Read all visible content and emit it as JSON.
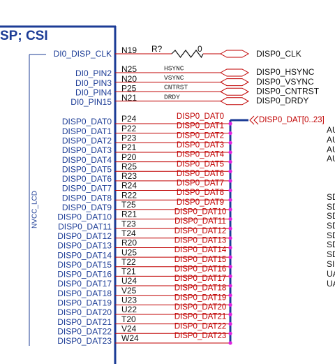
{
  "header": {
    "title": "SP; CSI"
  },
  "power_label": "NVCC_LCD",
  "clock": {
    "signal": "DI0_DISP_CLK",
    "pin": "N19",
    "resistor_ref": "R?",
    "resistor_value": "0",
    "port": "DISP0_CLK"
  },
  "control_pins": [
    {
      "signal": "DI0_PIN2",
      "pin": "N25",
      "net": "HSYNC",
      "port": "DISP0_HSYNC"
    },
    {
      "signal": "DI0_PIN3",
      "pin": "N20",
      "net": "VSYNC",
      "port": "DISP0_VSYNC"
    },
    {
      "signal": "DI0_PIN4",
      "pin": "P25",
      "net": "CNTRST",
      "port": "DISP0_CNTRST"
    },
    {
      "signal": "DI0_PIN15",
      "pin": "N21",
      "net": "DRDY",
      "port": "DISP0_DRDY"
    }
  ],
  "data_pins": [
    {
      "signal": "DISP0_DAT0",
      "pin": "P24",
      "net": "DISP0_DAT0"
    },
    {
      "signal": "DISP0_DAT1",
      "pin": "P22",
      "net": "DISP0_DAT1"
    },
    {
      "signal": "DISP0_DAT2",
      "pin": "P23",
      "net": "DISP0_DAT2"
    },
    {
      "signal": "DISP0_DAT3",
      "pin": "P21",
      "net": "DISP0_DAT3"
    },
    {
      "signal": "DISP0_DAT4",
      "pin": "P20",
      "net": "DISP0_DAT4"
    },
    {
      "signal": "DISP0_DAT5",
      "pin": "R25",
      "net": "DISP0_DAT5"
    },
    {
      "signal": "DISP0_DAT6",
      "pin": "R23",
      "net": "DISP0_DAT6"
    },
    {
      "signal": "DISP0_DAT7",
      "pin": "R24",
      "net": "DISP0_DAT7"
    },
    {
      "signal": "DISP0_DAT8",
      "pin": "R22",
      "net": "DISP0_DAT8"
    },
    {
      "signal": "DISP0_DAT9",
      "pin": "T25",
      "net": "DISP0_DAT9"
    },
    {
      "signal": "DISP0_DAT10",
      "pin": "R21",
      "net": "DISP0_DAT10"
    },
    {
      "signal": "DISP0_DAT11",
      "pin": "T23",
      "net": "DISP0_DAT11"
    },
    {
      "signal": "DISP0_DAT12",
      "pin": "T24",
      "net": "DISP0_DAT12"
    },
    {
      "signal": "DISP0_DAT13",
      "pin": "R20",
      "net": "DISP0_DAT13"
    },
    {
      "signal": "DISP0_DAT14",
      "pin": "U25",
      "net": "DISP0_DAT14"
    },
    {
      "signal": "DISP0_DAT15",
      "pin": "T22",
      "net": "DISP0_DAT15"
    },
    {
      "signal": "DISP0_DAT16",
      "pin": "T21",
      "net": "DISP0_DAT16"
    },
    {
      "signal": "DISP0_DAT17",
      "pin": "U24",
      "net": "DISP0_DAT17"
    },
    {
      "signal": "DISP0_DAT18",
      "pin": "V25",
      "net": "DISP0_DAT18"
    },
    {
      "signal": "DISP0_DAT19",
      "pin": "U23",
      "net": "DISP0_DAT19"
    },
    {
      "signal": "DISP0_DAT20",
      "pin": "U22",
      "net": "DISP0_DAT20"
    },
    {
      "signal": "DISP0_DAT21",
      "pin": "T20",
      "net": "DISP0_DAT21"
    },
    {
      "signal": "DISP0_DAT22",
      "pin": "V24",
      "net": "DISP0_DAT22"
    },
    {
      "signal": "DISP0_DAT23",
      "pin": "W24",
      "net": "DISP0_DAT23"
    }
  ],
  "bus_port": "DISP0_DAT[0..23]",
  "clipped_labels": [
    "AU",
    "AU",
    "AU",
    "AU",
    "SD",
    "SD",
    "SD",
    "SD",
    "SD",
    "SD",
    "SD",
    "SI",
    "UA",
    "UA"
  ]
}
